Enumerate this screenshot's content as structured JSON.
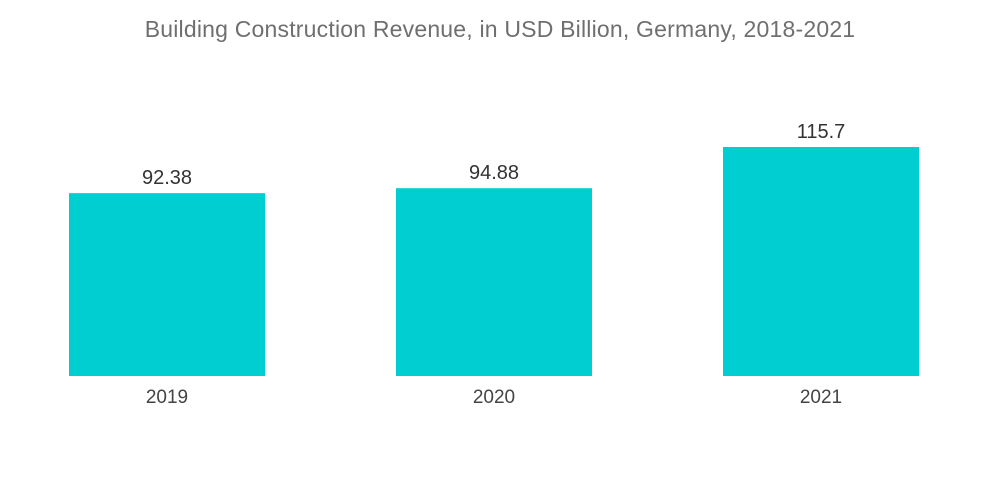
{
  "chart_data": {
    "type": "bar",
    "title": "Building Construction Revenue, in USD Billion, Germany, 2018-2021",
    "categories": [
      "2019",
      "2020",
      "2021"
    ],
    "values": [
      92.38,
      94.88,
      115.7
    ],
    "value_labels": [
      "92.38",
      "94.88",
      "115.7"
    ],
    "xlabel": "",
    "ylabel": "",
    "ylim": [
      0,
      115.7
    ],
    "grid": false,
    "legend": "none",
    "bar_color": "#00CED1"
  }
}
